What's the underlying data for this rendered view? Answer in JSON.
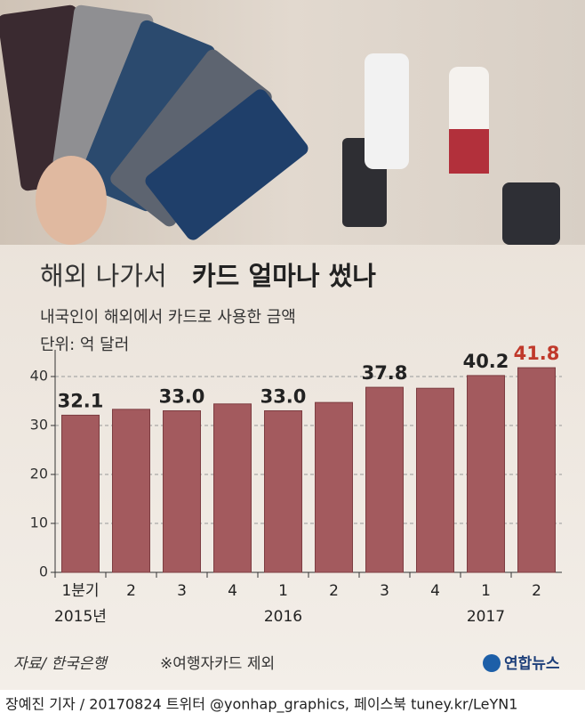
{
  "chart_data": {
    "type": "bar",
    "title_light": "해외 나가서",
    "title_bold": "카드 얼마나 썼나",
    "subtitle": "내국인이 해외에서 카드로 사용한 금액",
    "unit": "단위: 억 달러",
    "categories": [
      "1분기",
      "2",
      "3",
      "4",
      "1",
      "2",
      "3",
      "4",
      "1",
      "2"
    ],
    "x_groups": [
      {
        "label": "2015년",
        "index": 0
      },
      {
        "label": "2016",
        "index": 4
      },
      {
        "label": "2017",
        "index": 8
      }
    ],
    "values": [
      32.1,
      33.3,
      33.0,
      34.4,
      33.0,
      34.7,
      37.8,
      37.6,
      40.2,
      41.8
    ],
    "value_labels": [
      "32.1",
      null,
      "33.0",
      null,
      "33.0",
      null,
      "37.8",
      null,
      "40.2",
      "41.8"
    ],
    "color": "#a35a5e",
    "highlight_color": "#c0392b",
    "ylim": [
      0,
      44
    ],
    "yticks": [
      0,
      10,
      20,
      30,
      40
    ],
    "grid": true,
    "source": "자료/ 한국은행",
    "note": "※여행자카드 제외",
    "logo": "연합뉴스",
    "footer": "장예진 기자 / 20170824 트위터 @yonhap_graphics, 페이스북 tuney.kr/LeYN1"
  }
}
